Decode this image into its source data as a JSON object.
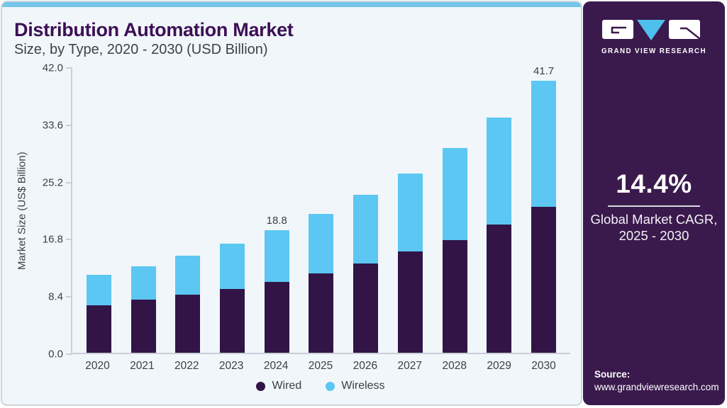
{
  "header": {
    "title": "Distribution Automation Market",
    "subtitle": "Size, by Type, 2020 - 2030 (USD Billion)"
  },
  "chart_data": {
    "type": "bar",
    "stacked": true,
    "title": "Distribution Automation Market Size, by Type, 2020 - 2030 (USD Billion)",
    "categories": [
      "2020",
      "2021",
      "2022",
      "2023",
      "2024",
      "2025",
      "2026",
      "2027",
      "2028",
      "2029",
      "2030"
    ],
    "series": [
      {
        "name": "Wired",
        "color": "#321447",
        "values": [
          7.3,
          8.1,
          8.9,
          9.8,
          10.9,
          12.2,
          13.7,
          15.5,
          17.3,
          19.7,
          22.4
        ]
      },
      {
        "name": "Wireless",
        "color": "#5bc7f2",
        "values": [
          4.6,
          5.2,
          6.0,
          6.9,
          7.9,
          9.1,
          10.5,
          12.0,
          14.1,
          16.4,
          19.3
        ]
      }
    ],
    "totals_shown": [
      {
        "category": "2024",
        "label": "18.8"
      },
      {
        "category": "2030",
        "label": "41.7"
      }
    ],
    "xlabel": "",
    "ylabel": "Market Size (US$ Billion)",
    "yticks": [
      0.0,
      8.4,
      16.8,
      25.2,
      33.6,
      42.0
    ],
    "ytick_labels": [
      "0.0",
      "8.4",
      "16.8",
      "25.2",
      "33.6",
      "42.0"
    ],
    "ylim": [
      0,
      42
    ],
    "grid": false,
    "legend_position": "bottom"
  },
  "legend": {
    "items": [
      {
        "label": "Wired",
        "color": "#321447"
      },
      {
        "label": "Wireless",
        "color": "#5bc7f2"
      }
    ]
  },
  "sidebar": {
    "logo_text": "GRAND VIEW RESEARCH",
    "cagr_value": "14.4%",
    "cagr_caption_line1": "Global Market CAGR,",
    "cagr_caption_line2": "2025 - 2030",
    "source_label": "Source:",
    "source_url": "www.grandviewresearch.com"
  },
  "colors": {
    "wired": "#321447",
    "wireless": "#5bc7f2",
    "top_strip": "#74c5ea",
    "sidebar_bg": "#3a1a4d",
    "title_text": "#3d1056",
    "card_bg": "#f1f6fa",
    "logo_triangle": "#4fc0ee"
  }
}
